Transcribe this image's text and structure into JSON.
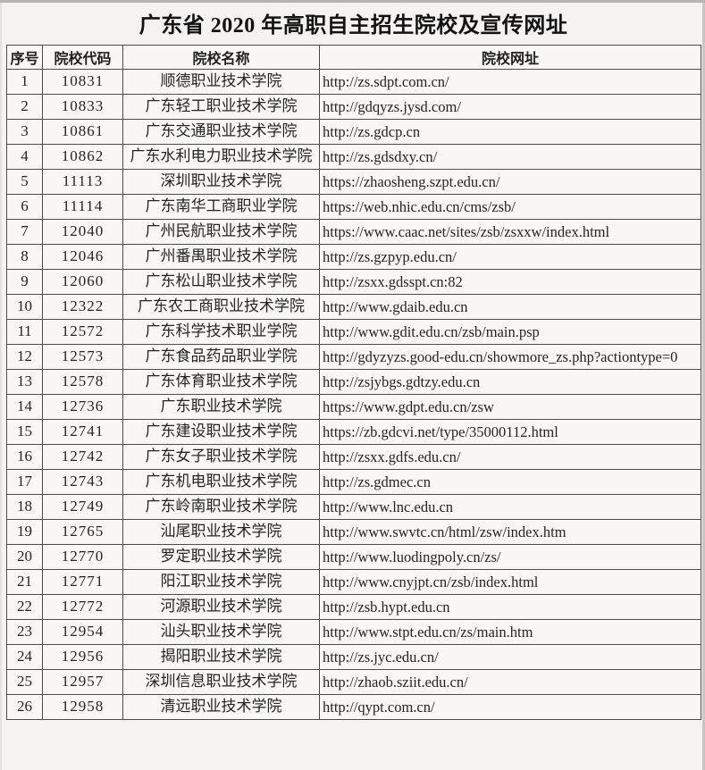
{
  "title": "广东省 2020 年高职自主招生院校及宣传网址",
  "table": {
    "headers": [
      "序号",
      "院校代码",
      "院校名称",
      "院校网址"
    ],
    "rows": [
      {
        "no": "1",
        "code": "10831",
        "name": "顺德职业技术学院",
        "url": "http://zs.sdpt.com.cn/"
      },
      {
        "no": "2",
        "code": "10833",
        "name": "广东轻工职业技术学院",
        "url": "http://gdqyzs.jysd.com/"
      },
      {
        "no": "3",
        "code": "10861",
        "name": "广东交通职业技术学院",
        "url": "http://zs.gdcp.cn"
      },
      {
        "no": "4",
        "code": "10862",
        "name": "广东水利电力职业技术学院",
        "url": "http://zs.gdsdxy.cn/"
      },
      {
        "no": "5",
        "code": "11113",
        "name": "深圳职业技术学院",
        "url": "https://zhaosheng.szpt.edu.cn/"
      },
      {
        "no": "6",
        "code": "11114",
        "name": "广东南华工商职业学院",
        "url": "https://web.nhic.edu.cn/cms/zsb/"
      },
      {
        "no": "7",
        "code": "12040",
        "name": "广州民航职业技术学院",
        "url": "https://www.caac.net/sites/zsb/zsxxw/index.html"
      },
      {
        "no": "8",
        "code": "12046",
        "name": "广州番禺职业技术学院",
        "url": "http://zs.gzpyp.edu.cn/"
      },
      {
        "no": "9",
        "code": "12060",
        "name": "广东松山职业技术学院",
        "url": "http://zsxx.gdsspt.cn:82"
      },
      {
        "no": "10",
        "code": "12322",
        "name": "广东农工商职业技术学院",
        "url": "http://www.gdaib.edu.cn"
      },
      {
        "no": "11",
        "code": "12572",
        "name": "广东科学技术职业学院",
        "url": "http://www.gdit.edu.cn/zsb/main.psp"
      },
      {
        "no": "12",
        "code": "12573",
        "name": "广东食品药品职业学院",
        "url": "http://gdyzyzs.good-edu.cn/showmore_zs.php?actiontype=0"
      },
      {
        "no": "13",
        "code": "12578",
        "name": "广东体育职业技术学院",
        "url": "http://zsjybgs.gdtzy.edu.cn"
      },
      {
        "no": "14",
        "code": "12736",
        "name": "广东职业技术学院",
        "url": "https://www.gdpt.edu.cn/zsw"
      },
      {
        "no": "15",
        "code": "12741",
        "name": "广东建设职业技术学院",
        "url": "https://zb.gdcvi.net/type/35000112.html"
      },
      {
        "no": "16",
        "code": "12742",
        "name": "广东女子职业技术学院",
        "url": "http://zsxx.gdfs.edu.cn/"
      },
      {
        "no": "17",
        "code": "12743",
        "name": "广东机电职业技术学院",
        "url": "http://zs.gdmec.cn"
      },
      {
        "no": "18",
        "code": "12749",
        "name": "广东岭南职业技术学院",
        "url": "http://www.lnc.edu.cn"
      },
      {
        "no": "19",
        "code": "12765",
        "name": "汕尾职业技术学院",
        "url": "http://www.swvtc.cn/html/zsw/index.htm"
      },
      {
        "no": "20",
        "code": "12770",
        "name": "罗定职业技术学院",
        "url": "http://www.luodingpoly.cn/zs/"
      },
      {
        "no": "21",
        "code": "12771",
        "name": "阳江职业技术学院",
        "url": "http://www.cnyjpt.cn/zsb/index.html"
      },
      {
        "no": "22",
        "code": "12772",
        "name": "河源职业技术学院",
        "url": "http://zsb.hypt.edu.cn"
      },
      {
        "no": "23",
        "code": "12954",
        "name": "汕头职业技术学院",
        "url": "http://www.stpt.edu.cn/zs/main.htm"
      },
      {
        "no": "24",
        "code": "12956",
        "name": "揭阳职业技术学院",
        "url": "http://zs.jyc.edu.cn/"
      },
      {
        "no": "25",
        "code": "12957",
        "name": "深圳信息职业技术学院",
        "url": "http://zhaob.sziit.edu.cn/"
      },
      {
        "no": "26",
        "code": "12958",
        "name": "清远职业技术学院",
        "url": "http://qypt.com.cn/"
      }
    ]
  }
}
